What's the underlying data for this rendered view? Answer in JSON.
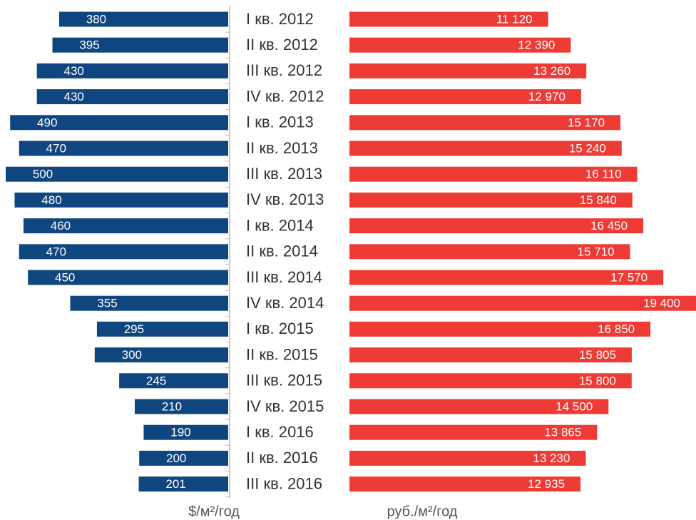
{
  "chart_data": {
    "type": "butterfly_bar",
    "categories": [
      "I кв. 2012",
      "II кв. 2012",
      "III кв. 2012",
      "IV кв. 2012",
      "I кв. 2013",
      "II кв. 2013",
      "III кв. 2013",
      "IV кв. 2013",
      "I кв. 2014",
      "II кв. 2014",
      "III кв. 2014",
      "IV кв. 2014",
      "I кв. 2015",
      "II кв. 2015",
      "III кв. 2015",
      "IV кв. 2015",
      "I кв. 2016",
      "II кв. 2016",
      "III кв. 2016"
    ],
    "series": [
      {
        "name": "$/м²/год",
        "color": "#0f467f",
        "side": "left",
        "values": [
          380,
          395,
          430,
          430,
          490,
          470,
          500,
          480,
          460,
          470,
          450,
          355,
          295,
          300,
          245,
          210,
          190,
          200,
          201
        ]
      },
      {
        "name": "руб./м²/год",
        "color": "#ee3b36",
        "side": "right",
        "values": [
          11120,
          12390,
          13260,
          12970,
          15170,
          15240,
          16110,
          15840,
          16450,
          15710,
          17570,
          19400,
          16850,
          15805,
          15800,
          14500,
          13865,
          13230,
          12935
        ],
        "value_labels": [
          "11 120",
          "12 390",
          "13 260",
          "12 970",
          "15 170",
          "15 240",
          "16 110",
          "15 840",
          "16 450",
          "15 710",
          "17 570",
          "19 400",
          "16 850",
          "15 805",
          "15 800",
          "14 500",
          "13 865",
          "13 230",
          "12 935"
        ]
      }
    ]
  }
}
